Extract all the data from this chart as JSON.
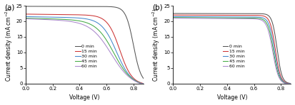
{
  "panel_a": {
    "label": "(a)",
    "jsc_values": [
      24.8,
      22.3,
      21.5,
      21.0,
      20.8
    ],
    "voc_values": [
      0.825,
      0.72,
      0.695,
      0.675,
      0.655
    ],
    "sharpness": [
      35,
      22,
      18,
      15,
      13
    ],
    "slope": [
      0.08,
      0.5,
      0.8,
      1.1,
      1.4
    ]
  },
  "panel_b": {
    "label": "(b)",
    "jsc_values": [
      22.5,
      22.0,
      21.5,
      21.2,
      21.0
    ],
    "voc_values": [
      0.795,
      0.782,
      0.775,
      0.768,
      0.762
    ],
    "sharpness": [
      55,
      52,
      50,
      48,
      46
    ],
    "slope": [
      0.05,
      0.12,
      0.18,
      0.24,
      0.3
    ]
  },
  "times": [
    "0 min",
    "15 min",
    "30 min",
    "45 min",
    "60 min"
  ],
  "colors": [
    "#555555",
    "#cc3333",
    "#4488cc",
    "#44aa44",
    "#aa88cc"
  ],
  "xlabel": "Voltage (V)",
  "ylabel": "Current density (mA cm$^{-2}$)",
  "xlim": [
    0.0,
    0.875
  ],
  "ylim": [
    0,
    25
  ],
  "xticks": [
    0.0,
    0.2,
    0.4,
    0.6,
    0.8
  ],
  "yticks": [
    0,
    5,
    10,
    15,
    20,
    25
  ],
  "figsize": [
    4.13,
    1.48
  ],
  "dpi": 100
}
